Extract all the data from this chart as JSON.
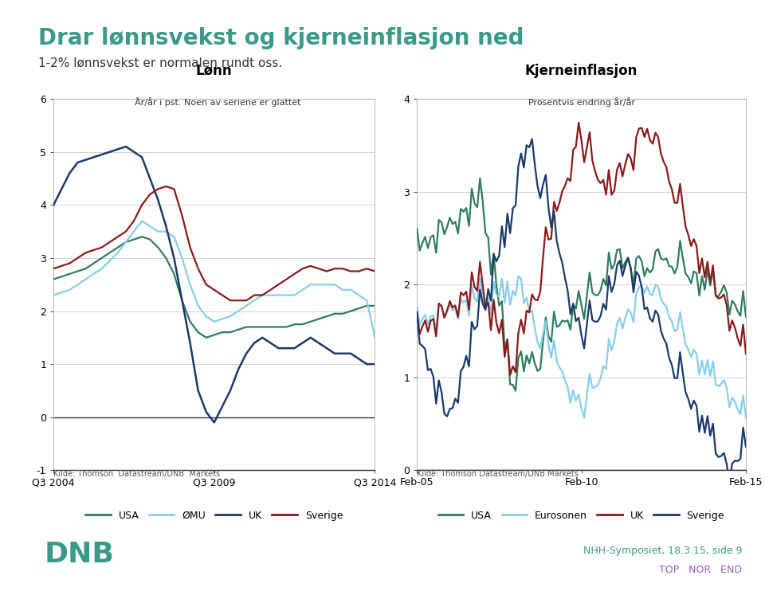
{
  "title": "Drar lønnsvekst og kjerneinflasjon ned",
  "subtitle": "1-2% lønnsvekst er normalen rundt oss.",
  "title_color": "#3a9a8a",
  "subtitle_color": "#333333",
  "bg_color": "#ffffff",
  "panel_bg": "#ffffff",
  "left_chart": {
    "title": "Lønn",
    "subtitle": "År/år i pst. Noen av seriene er glattet",
    "ylim": [
      -1,
      6
    ],
    "yticks": [
      -1,
      0,
      1,
      2,
      3,
      4,
      5,
      6
    ],
    "source": "Kilde: Thomson  Datastream/DNB  Markets",
    "legend": [
      "USA",
      "ØMU",
      "UK",
      "Sverige"
    ],
    "colors": [
      "#2e7d5e",
      "#87ceeb",
      "#1a3a6b",
      "#8b1a1a"
    ],
    "x_labels": [
      "Q3 2004",
      "Q3 2009",
      "Q3 2014"
    ]
  },
  "right_chart": {
    "title": "Kjerneinflasjon",
    "subtitle": "Prosentvis endring år/år",
    "ylim": [
      0,
      4
    ],
    "yticks": [
      0,
      1,
      2,
      3,
      4
    ],
    "source": "Kilde: Thomson Datastream/DNB Markets",
    "legend": [
      "USA",
      "Eurosonen",
      "UK",
      "Sverige"
    ],
    "colors": [
      "#2e7d5e",
      "#87ceeb",
      "#8b1a1a",
      "#1a3a6b"
    ],
    "x_labels": [
      "Feb-05",
      "Feb-10",
      "Feb-15"
    ]
  },
  "footer_left": "DNB",
  "footer_right": "NHH-Symposiet, 18.3.15, side 9",
  "footer_links": "TOP   NOR   END",
  "teal_color": "#3a9a8a",
  "purple_color": "#9b59b6"
}
